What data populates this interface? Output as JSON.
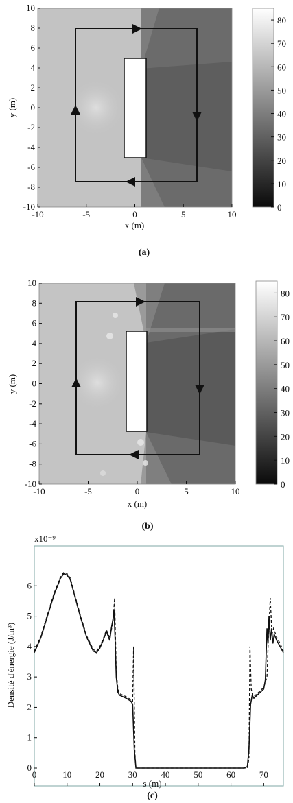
{
  "chart_data": [
    {
      "type": "heatmap",
      "panel": "(a)",
      "xlabel": "x (m)",
      "ylabel": "y (m)",
      "xlim": [
        -10,
        10
      ],
      "ylim": [
        -10,
        10
      ],
      "x_ticks": [
        "-10",
        "-5",
        "0",
        "5",
        "10"
      ],
      "y_ticks": [
        "10",
        "8",
        "6",
        "4",
        "2",
        "0",
        "-2",
        "-4",
        "-6",
        "-8",
        "-10"
      ],
      "colorbar": {
        "range": [
          0,
          85
        ],
        "ticks": [
          "80",
          "70",
          "60",
          "50",
          "40",
          "30",
          "20",
          "10",
          "0"
        ]
      },
      "obstacle": {
        "x": [
          -1.3,
          1.0
        ],
        "y": [
          -5.0,
          5.0
        ]
      },
      "path": {
        "x": [
          -6.2,
          6.2
        ],
        "y": [
          -7.5,
          8.0
        ]
      },
      "field_levels": {
        "left_region": 58,
        "right_region": 32,
        "source_peak": 66
      }
    },
    {
      "type": "heatmap",
      "panel": "(b)",
      "xlabel": "x (m)",
      "ylabel": "y (m)",
      "xlim": [
        -10,
        10
      ],
      "ylim": [
        -10,
        10
      ],
      "x_ticks": [
        "-10",
        "-5",
        "0",
        "5",
        "10"
      ],
      "y_ticks": [
        "10",
        "8",
        "6",
        "4",
        "2",
        "0",
        "-2",
        "-4",
        "-6",
        "-8",
        "-10"
      ],
      "colorbar": {
        "range": [
          0,
          85
        ],
        "ticks": [
          "80",
          "70",
          "60",
          "50",
          "40",
          "30",
          "20",
          "10",
          "0"
        ]
      },
      "obstacle": {
        "x": [
          -1.0,
          1.0
        ],
        "y": [
          -5.0,
          5.2
        ]
      },
      "path": {
        "x": [
          -6.0,
          6.2
        ],
        "y": [
          -7.5,
          8.1
        ]
      },
      "field_levels": {
        "left_region": 58,
        "right_region": 30,
        "source_peak": 66
      }
    },
    {
      "type": "line",
      "panel": "(c)",
      "xlabel": "s (m)",
      "ylabel": "Densité d'énergie (J/m³)",
      "multiplier": "x10⁻⁹",
      "xlim": [
        0,
        76
      ],
      "ylim": [
        0,
        7
      ],
      "x_ticks": [
        "0",
        "10",
        "20",
        "30",
        "40",
        "50",
        "60",
        "70"
      ],
      "y_ticks": [
        "6",
        "5",
        "4",
        "3",
        "2",
        "1",
        "0"
      ],
      "series": [
        {
          "style": "solid",
          "x": [
            0,
            2,
            4,
            6,
            8,
            9,
            10,
            11,
            12,
            14,
            16,
            18,
            19,
            20,
            21,
            22,
            23,
            23.5,
            24,
            24.3,
            24.6,
            25,
            25.5,
            26,
            28,
            29.5,
            30,
            30.5,
            31,
            32,
            34,
            40,
            50,
            60,
            64,
            65,
            65.5,
            66,
            66.5,
            67,
            68,
            70,
            70.5,
            71,
            71.3,
            71.6,
            72,
            72.4,
            72.8,
            73.2,
            74,
            75,
            76
          ],
          "y": [
            3.8,
            4.3,
            5.0,
            5.7,
            6.25,
            6.4,
            6.35,
            6.2,
            5.8,
            5.0,
            4.3,
            3.85,
            3.8,
            3.95,
            4.2,
            4.5,
            4.2,
            4.6,
            4.9,
            5.2,
            4.4,
            3.0,
            2.5,
            2.4,
            2.3,
            2.2,
            2.1,
            0.6,
            0.0,
            0.0,
            0.0,
            0.0,
            0.0,
            0.0,
            0.0,
            0.05,
            0.6,
            2.1,
            2.4,
            2.3,
            2.4,
            2.6,
            2.9,
            4.6,
            4.1,
            5.0,
            4.2,
            4.6,
            4.1,
            4.4,
            4.2,
            4.0,
            3.8
          ]
        },
        {
          "style": "dashed",
          "x": [
            0,
            2,
            4,
            6,
            8,
            9,
            10,
            11,
            12,
            14,
            16,
            18,
            19,
            20,
            21,
            22,
            23,
            24,
            24.5,
            25,
            25.5,
            26,
            28,
            29.5,
            30,
            30.3,
            30.7,
            31,
            32,
            34,
            40,
            50,
            60,
            64,
            65,
            65.5,
            65.8,
            66.2,
            66.6,
            67,
            68,
            70,
            71,
            71.5,
            72,
            72.5,
            73,
            74,
            75,
            76
          ],
          "y": [
            3.85,
            4.35,
            5.05,
            5.75,
            6.3,
            6.45,
            6.4,
            6.25,
            5.85,
            5.05,
            4.35,
            3.9,
            3.85,
            4.0,
            4.25,
            4.55,
            4.3,
            4.8,
            5.6,
            3.2,
            2.6,
            2.45,
            2.35,
            2.25,
            2.2,
            4.0,
            0.5,
            0.0,
            0.0,
            0.0,
            0.0,
            0.0,
            0.0,
            0.0,
            0.0,
            0.3,
            4.0,
            2.6,
            2.4,
            2.35,
            2.45,
            2.65,
            3.0,
            4.5,
            5.6,
            4.4,
            4.6,
            4.3,
            4.1,
            3.85
          ]
        }
      ]
    }
  ]
}
